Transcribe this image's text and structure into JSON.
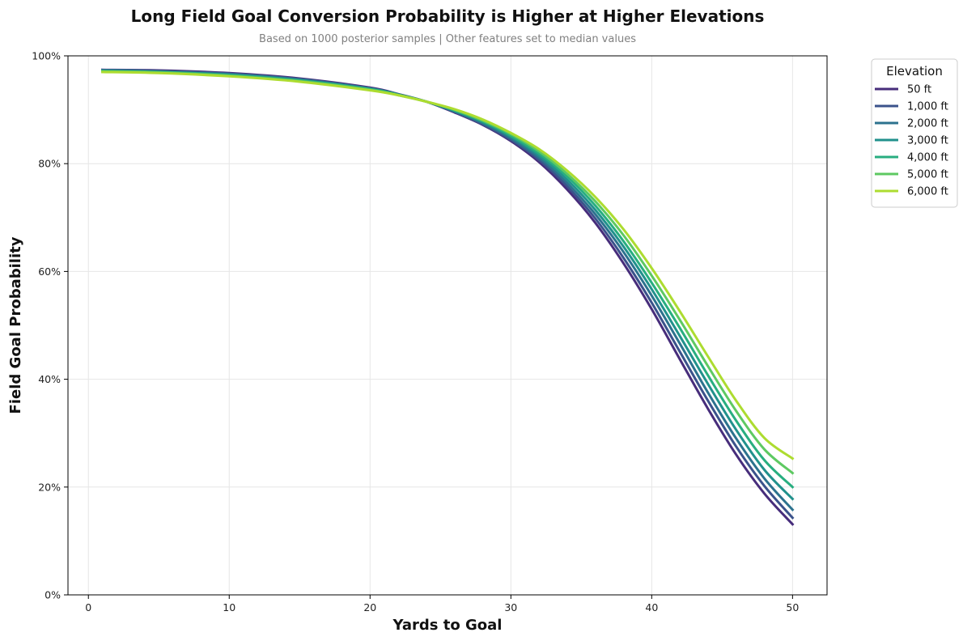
{
  "chart_data": {
    "type": "line",
    "title": "Long Field Goal Conversion Probability is Higher at Higher Elevations",
    "subtitle": "Based on 1000 posterior samples | Other features set to median values",
    "xlabel": "Yards to Goal",
    "ylabel": "Field Goal Probability",
    "xlim": [
      -1.45,
      52.45
    ],
    "ylim": [
      0,
      1
    ],
    "x_ticks": [
      0,
      10,
      20,
      30,
      40,
      50
    ],
    "y_ticks": [
      0,
      0.2,
      0.4,
      0.6,
      0.8,
      1.0
    ],
    "y_tick_labels": [
      "0%",
      "20%",
      "40%",
      "60%",
      "80%",
      "100%"
    ],
    "grid": true,
    "legend": {
      "title": "Elevation",
      "placement": "outside-top-right"
    },
    "x": [
      1,
      5,
      10,
      15,
      20,
      22,
      24,
      26,
      28,
      30,
      32,
      34,
      36,
      38,
      40,
      42,
      44,
      46,
      48,
      50
    ],
    "series": [
      {
        "name": "50 ft",
        "color": "#472d7b",
        "values": [
          0.974,
          0.973,
          0.968,
          0.958,
          0.941,
          0.929,
          0.915,
          0.895,
          0.872,
          0.842,
          0.803,
          0.752,
          0.69,
          0.615,
          0.53,
          0.437,
          0.345,
          0.26,
          0.188,
          0.131
        ]
      },
      {
        "name": "1,000 ft",
        "color": "#3b528b",
        "values": [
          0.974,
          0.972,
          0.967,
          0.957,
          0.94,
          0.929,
          0.915,
          0.896,
          0.873,
          0.844,
          0.807,
          0.758,
          0.698,
          0.625,
          0.542,
          0.451,
          0.36,
          0.275,
          0.202,
          0.143
        ]
      },
      {
        "name": "2,000 ft",
        "color": "#2c728e",
        "values": [
          0.973,
          0.971,
          0.966,
          0.956,
          0.939,
          0.928,
          0.915,
          0.897,
          0.875,
          0.847,
          0.811,
          0.764,
          0.706,
          0.636,
          0.555,
          0.466,
          0.375,
          0.29,
          0.216,
          0.158
        ]
      },
      {
        "name": "3,000 ft",
        "color": "#21918c",
        "values": [
          0.972,
          0.97,
          0.965,
          0.955,
          0.939,
          0.928,
          0.915,
          0.898,
          0.877,
          0.85,
          0.815,
          0.77,
          0.714,
          0.646,
          0.567,
          0.48,
          0.391,
          0.306,
          0.232,
          0.178
        ]
      },
      {
        "name": "4,000 ft",
        "color": "#28ae80",
        "values": [
          0.972,
          0.97,
          0.964,
          0.954,
          0.938,
          0.928,
          0.915,
          0.899,
          0.879,
          0.852,
          0.819,
          0.776,
          0.722,
          0.656,
          0.579,
          0.495,
          0.407,
          0.323,
          0.25,
          0.2
        ]
      },
      {
        "name": "5,000 ft",
        "color": "#5ec962",
        "values": [
          0.971,
          0.969,
          0.963,
          0.953,
          0.937,
          0.927,
          0.915,
          0.9,
          0.88,
          0.855,
          0.823,
          0.781,
          0.73,
          0.667,
          0.592,
          0.51,
          0.424,
          0.341,
          0.27,
          0.226
        ]
      },
      {
        "name": "6,000 ft",
        "color": "#addc30",
        "values": [
          0.97,
          0.968,
          0.962,
          0.952,
          0.936,
          0.927,
          0.915,
          0.901,
          0.882,
          0.857,
          0.827,
          0.787,
          0.738,
          0.678,
          0.606,
          0.526,
          0.442,
          0.36,
          0.291,
          0.253
        ]
      }
    ]
  }
}
